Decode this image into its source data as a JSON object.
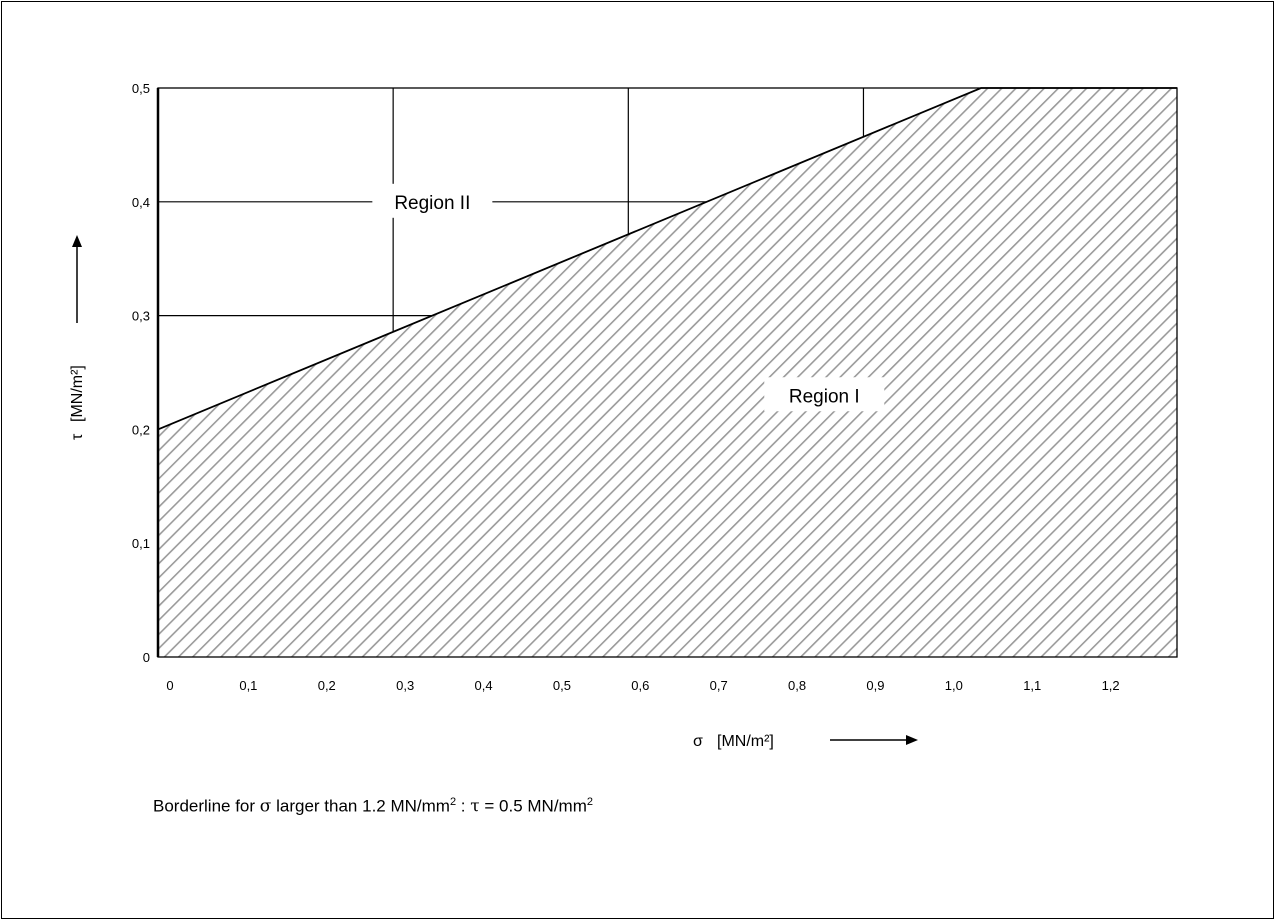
{
  "chart_data": {
    "type": "area",
    "x_axis": {
      "label_symbol": "σ",
      "label_unit": "[MN/m²]",
      "range": [
        0,
        1.3
      ],
      "ticks": [
        0,
        0.1,
        0.2,
        0.3,
        0.4,
        0.5,
        0.6,
        0.7,
        0.8,
        0.9,
        1.0,
        1.1,
        1.2
      ],
      "tick_labels": [
        "0",
        "0,1",
        "0,2",
        "0,3",
        "0,4",
        "0,5",
        "0,6",
        "0,7",
        "0,8",
        "0,9",
        "1,0",
        "1,1",
        "1,2"
      ]
    },
    "y_axis": {
      "label_symbol": "τ",
      "label_unit": "[MN/m²]",
      "range": [
        0,
        0.5
      ],
      "ticks": [
        0,
        0.1,
        0.2,
        0.3,
        0.4,
        0.5
      ],
      "tick_labels": [
        "0",
        "0,1",
        "0,2",
        "0,3",
        "0,4",
        "0,5"
      ]
    },
    "borderline": {
      "x": [
        0,
        1.05,
        1.3
      ],
      "y": [
        0.2,
        0.5,
        0.5
      ]
    },
    "grid": {
      "vertical_lines_at": [
        0.3,
        0.6,
        0.9
      ],
      "horizontal_lines_at": [
        0.3,
        0.4
      ]
    },
    "regions": [
      {
        "name": "Region I",
        "area": "below borderline",
        "fill": "hatched"
      },
      {
        "name": "Region II",
        "area": "above borderline",
        "fill": "none"
      }
    ],
    "region_labels": [
      {
        "text": "Region II",
        "x": 0.35,
        "y": 0.4
      },
      {
        "text": "Region I",
        "x": 0.85,
        "y": 0.23
      }
    ],
    "hatch_color": "#9a9a9a",
    "line_color": "#000000"
  },
  "footnote": {
    "part1": "Borderline for ",
    "sigma": "σ",
    "part2": " larger than 1.2 MN/mm",
    "exp1": "2",
    "part3": " :  ",
    "tau": "τ",
    "part4": " = 0.5 MN/mm",
    "exp2": "2"
  }
}
